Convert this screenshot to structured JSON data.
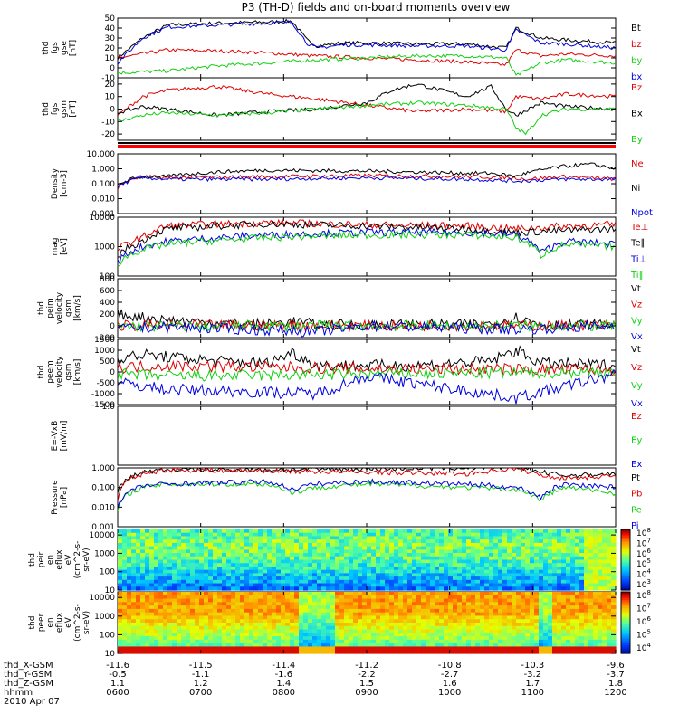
{
  "title": "P3 (TH-D) fields and on-board moments overview",
  "footer": {
    "rows": [
      {
        "label": "thd_X-GSM",
        "values": [
          "-11.6",
          "-11.5",
          "-11.4",
          "-11.2",
          "-10.8",
          "-10.3",
          "-9.6"
        ]
      },
      {
        "label": "thd_Y-GSM",
        "values": [
          "-0.5",
          "-1.1",
          "-1.6",
          "-2.2",
          "-2.7",
          "-3.2",
          "-3.7"
        ]
      },
      {
        "label": "thd_Z-GSM",
        "values": [
          "1.1",
          "1.2",
          "1.4",
          "1.5",
          "1.6",
          "1.7",
          "1.8"
        ]
      },
      {
        "label": "hhmm",
        "values": [
          "0600",
          "0700",
          "0800",
          "0900",
          "1000",
          "1100",
          "1200"
        ]
      }
    ],
    "date": "2010 Apr 07"
  },
  "colors": {
    "black": "#000000",
    "red": "#e00000",
    "green": "#10d010",
    "blue": "#0000e0"
  },
  "chart_data": [
    {
      "type": "line",
      "panel": "fgs-gse",
      "ylabel": [
        "thd",
        "fgs",
        "gse",
        "[nT]"
      ],
      "ylim": [
        -10,
        50
      ],
      "yticks": [
        -10,
        0,
        10,
        20,
        30,
        40,
        50
      ],
      "series": [
        {
          "name": "Bt",
          "color": "#000000",
          "x": [
            0,
            0.05,
            0.1,
            0.2,
            0.3,
            0.35,
            0.38,
            0.4,
            0.45,
            0.5,
            0.6,
            0.7,
            0.78,
            0.8,
            0.85,
            0.9,
            1
          ],
          "y": [
            10,
            30,
            43,
            45,
            46,
            47,
            28,
            22,
            25,
            25,
            24,
            24,
            20,
            40,
            30,
            28,
            25
          ]
        },
        {
          "name": "bz",
          "color": "#e00000",
          "x": [
            0,
            0.1,
            0.2,
            0.3,
            0.4,
            0.5,
            0.6,
            0.7,
            0.78,
            0.8,
            0.85,
            0.9,
            1
          ],
          "y": [
            10,
            18,
            17,
            15,
            12,
            10,
            8,
            6,
            3,
            18,
            12,
            14,
            12
          ]
        },
        {
          "name": "by",
          "color": "#10d010",
          "x": [
            0,
            0.1,
            0.2,
            0.3,
            0.4,
            0.5,
            0.6,
            0.7,
            0.78,
            0.8,
            0.85,
            0.9,
            1
          ],
          "y": [
            -5,
            -3,
            2,
            5,
            8,
            10,
            12,
            12,
            10,
            -8,
            5,
            8,
            5
          ]
        },
        {
          "name": "bx",
          "color": "#0000e0",
          "x": [
            0,
            0.05,
            0.1,
            0.2,
            0.3,
            0.35,
            0.38,
            0.4,
            0.45,
            0.5,
            0.6,
            0.7,
            0.78,
            0.8,
            0.85,
            0.9,
            1
          ],
          "y": [
            5,
            30,
            41,
            43,
            45,
            46,
            25,
            20,
            23,
            23,
            22,
            22,
            18,
            38,
            25,
            24,
            20
          ]
        }
      ]
    },
    {
      "type": "line",
      "panel": "fgs-gsm",
      "ylabel": [
        "thd",
        "fgs",
        "gsm",
        "[nT]"
      ],
      "ylim": [
        -25,
        25
      ],
      "yticks": [
        -20,
        -10,
        0,
        10,
        20
      ],
      "series": [
        {
          "name": "Bz",
          "color": "#e00000",
          "x": [
            0,
            0.05,
            0.1,
            0.2,
            0.3,
            0.4,
            0.5,
            0.6,
            0.7,
            0.78,
            0.8,
            0.85,
            0.9,
            1
          ],
          "y": [
            -5,
            10,
            15,
            18,
            12,
            8,
            3,
            -2,
            0,
            -2,
            10,
            8,
            12,
            10
          ]
        },
        {
          "name": "Bx",
          "color": "#000000",
          "x": [
            0,
            0.05,
            0.1,
            0.2,
            0.3,
            0.4,
            0.5,
            0.55,
            0.6,
            0.7,
            0.75,
            0.78,
            0.8,
            0.85,
            0.9,
            1
          ],
          "y": [
            -3,
            2,
            0,
            -5,
            -2,
            0,
            5,
            15,
            20,
            10,
            18,
            0,
            -5,
            5,
            2,
            0
          ]
        },
        {
          "name": "By",
          "color": "#10d010",
          "x": [
            0,
            0.05,
            0.1,
            0.2,
            0.3,
            0.4,
            0.5,
            0.6,
            0.7,
            0.78,
            0.8,
            0.82,
            0.85,
            0.9,
            1
          ],
          "y": [
            -10,
            -5,
            -3,
            -5,
            -3,
            0,
            3,
            5,
            3,
            0,
            -15,
            -20,
            -5,
            0,
            0
          ]
        }
      ]
    },
    {
      "type": "line",
      "panel": "density",
      "yscale": "log",
      "ylabel": [
        "Density",
        "[cm-3]"
      ],
      "ylim": [
        0.001,
        10
      ],
      "yticks": [
        0.001,
        0.01,
        0.1,
        1,
        10
      ],
      "ytick_labels": [
        "0.001",
        "0.010",
        "0.100",
        "1.000",
        "10.000"
      ],
      "series": [
        {
          "name": "Ne",
          "color": "#e00000",
          "x": [
            0,
            0.05,
            0.1,
            0.3,
            0.5,
            0.7,
            0.8,
            0.82,
            0.9,
            1
          ],
          "y": [
            0.05,
            0.3,
            0.25,
            0.3,
            0.35,
            0.3,
            0.25,
            0.2,
            0.3,
            0.2
          ]
        },
        {
          "name": "Ni",
          "color": "#000000",
          "x": [
            0,
            0.05,
            0.1,
            0.2,
            0.3,
            0.5,
            0.7,
            0.75,
            0.8,
            0.85,
            0.9,
            0.95,
            1
          ],
          "y": [
            0.08,
            0.3,
            0.3,
            0.6,
            0.8,
            0.7,
            0.5,
            0.5,
            0.3,
            0.8,
            1.5,
            2,
            1
          ]
        },
        {
          "name": "Npot",
          "color": "#0000e0",
          "x": [
            0,
            0.05,
            0.1,
            0.3,
            0.5,
            0.7,
            0.8,
            0.9,
            1
          ],
          "y": [
            0.06,
            0.25,
            0.2,
            0.2,
            0.25,
            0.2,
            0.15,
            0.2,
            0.2
          ]
        }
      ]
    },
    {
      "type": "line",
      "panel": "temperature",
      "yscale": "log",
      "ylabel": [
        "mag",
        "[eV]"
      ],
      "ylim": [
        100,
        10000
      ],
      "yticks": [
        100,
        1000,
        10000
      ],
      "ytick_labels": [
        "100",
        "1000",
        "10000"
      ],
      "series": [
        {
          "name": "Te⊥",
          "color": "#e00000",
          "x": [
            0,
            0.05,
            0.1,
            0.3,
            0.5,
            0.7,
            0.8,
            0.9,
            1
          ],
          "y": [
            800,
            2000,
            5000,
            6500,
            5500,
            5000,
            4000,
            5000,
            5500
          ]
        },
        {
          "name": "Te∥",
          "color": "#000000",
          "x": [
            0,
            0.05,
            0.1,
            0.3,
            0.5,
            0.7,
            0.8,
            0.9,
            1
          ],
          "y": [
            500,
            1500,
            4000,
            6000,
            5000,
            4000,
            3000,
            3500,
            4000
          ]
        },
        {
          "name": "Ti⊥",
          "color": "#0000e0",
          "x": [
            0,
            0.05,
            0.1,
            0.3,
            0.5,
            0.7,
            0.8,
            0.85,
            0.9,
            1
          ],
          "y": [
            300,
            1000,
            1500,
            2500,
            3000,
            3000,
            2500,
            600,
            1500,
            1200
          ]
        },
        {
          "name": "Ti∥",
          "color": "#10d010",
          "x": [
            0,
            0.05,
            0.1,
            0.3,
            0.5,
            0.7,
            0.8,
            0.85,
            0.9,
            1
          ],
          "y": [
            250,
            800,
            1200,
            2000,
            2500,
            2500,
            2000,
            500,
            1200,
            1000
          ]
        }
      ]
    },
    {
      "type": "line",
      "panel": "peim-velocity",
      "ylabel": [
        "thd",
        "peim",
        "velocity",
        "gsm",
        "[km/s]"
      ],
      "ylim": [
        -200,
        800
      ],
      "yticks": [
        -200,
        0,
        200,
        400,
        600,
        800
      ],
      "series": [
        {
          "name": "Vt",
          "color": "#000000",
          "x": [
            0,
            0.05,
            0.1,
            0.2,
            0.3,
            0.35,
            0.4,
            0.6,
            0.75,
            0.8,
            0.85,
            1
          ],
          "y": [
            200,
            150,
            100,
            50,
            30,
            80,
            20,
            20,
            30,
            150,
            20,
            20
          ]
        },
        {
          "name": "Vz",
          "color": "#e00000",
          "x": [
            0,
            0.1,
            0.5,
            1
          ],
          "y": [
            0,
            10,
            5,
            0
          ]
        },
        {
          "name": "Vy",
          "color": "#10d010",
          "x": [
            0,
            0.1,
            0.5,
            1
          ],
          "y": [
            0,
            -10,
            0,
            0
          ]
        },
        {
          "name": "Vx",
          "color": "#0000e0",
          "x": [
            0,
            0.1,
            0.4,
            0.5,
            0.8,
            1
          ],
          "y": [
            -50,
            -20,
            -100,
            0,
            -60,
            0
          ]
        }
      ]
    },
    {
      "type": "line",
      "panel": "peem-velocity",
      "ylabel": [
        "thd",
        "peem",
        "velocity",
        "gsm",
        "[km/s]"
      ],
      "ylim": [
        -1500,
        1500
      ],
      "yticks": [
        -1500,
        -1000,
        -500,
        0,
        500,
        1000,
        1500
      ],
      "series": [
        {
          "name": "Vt",
          "color": "#000000",
          "x": [
            0,
            0.05,
            0.1,
            0.2,
            0.3,
            0.35,
            0.4,
            0.6,
            0.75,
            0.8,
            0.85,
            1
          ],
          "y": [
            600,
            800,
            700,
            500,
            400,
            900,
            300,
            300,
            500,
            1000,
            400,
            300
          ]
        },
        {
          "name": "Vz",
          "color": "#e00000",
          "x": [
            0,
            0.1,
            0.5,
            1
          ],
          "y": [
            200,
            300,
            150,
            100
          ]
        },
        {
          "name": "Vy",
          "color": "#10d010",
          "x": [
            0,
            0.1,
            0.5,
            1
          ],
          "y": [
            -100,
            -200,
            -100,
            0
          ]
        },
        {
          "name": "Vx",
          "color": "#0000e0",
          "x": [
            0,
            0.1,
            0.4,
            0.5,
            0.8,
            1
          ],
          "y": [
            -500,
            -800,
            -1000,
            -200,
            -1200,
            -100
          ]
        }
      ]
    },
    {
      "type": "line",
      "panel": "efield",
      "ylabel": [
        "E=-VxB",
        "[mV/m]"
      ],
      "ylim": [
        null,
        1.0
      ],
      "yticks": [
        1.0
      ],
      "ytick_labels": [
        "1.0"
      ],
      "series": [
        {
          "name": "Ez",
          "color": "#e00000",
          "x": [],
          "y": []
        },
        {
          "name": "Ey",
          "color": "#10d010",
          "x": [],
          "y": []
        },
        {
          "name": "Ex",
          "color": "#0000e0",
          "x": [],
          "y": []
        }
      ]
    },
    {
      "type": "line",
      "panel": "pressure",
      "yscale": "log",
      "ylabel": [
        "Pressure",
        "[nPa]"
      ],
      "ylim": [
        0.001,
        1
      ],
      "yticks": [
        0.001,
        0.01,
        0.1,
        1
      ],
      "ytick_labels": [
        "0.001",
        "0.010",
        "0.100",
        "1.000"
      ],
      "series": [
        {
          "name": "Pt",
          "color": "#000000",
          "x": [
            0,
            0.05,
            0.1,
            0.3,
            0.5,
            0.7,
            0.8,
            0.85,
            0.9,
            1
          ],
          "y": [
            0.05,
            0.6,
            0.8,
            0.8,
            0.9,
            1.0,
            1.1,
            0.6,
            0.4,
            0.5
          ]
        },
        {
          "name": "Pb",
          "color": "#e00000",
          "x": [
            0,
            0.05,
            0.1,
            0.3,
            0.5,
            0.7,
            0.8,
            0.85,
            0.9,
            1
          ],
          "y": [
            0.02,
            0.5,
            0.8,
            0.7,
            0.6,
            0.5,
            0.9,
            0.4,
            0.3,
            0.4
          ]
        },
        {
          "name": "Pe",
          "color": "#10d010",
          "x": [
            0,
            0.05,
            0.1,
            0.3,
            0.35,
            0.4,
            0.5,
            0.7,
            0.8,
            0.85,
            0.9,
            1
          ],
          "y": [
            0.005,
            0.1,
            0.15,
            0.15,
            0.05,
            0.1,
            0.15,
            0.1,
            0.08,
            0.02,
            0.1,
            0.05
          ]
        },
        {
          "name": "Pi",
          "color": "#0000e0",
          "x": [
            0,
            0.05,
            0.1,
            0.3,
            0.35,
            0.4,
            0.5,
            0.7,
            0.8,
            0.85,
            0.9,
            1
          ],
          "y": [
            0.008,
            0.12,
            0.15,
            0.2,
            0.08,
            0.15,
            0.2,
            0.15,
            0.1,
            0.03,
            0.15,
            0.1
          ]
        }
      ]
    },
    {
      "type": "heatmap",
      "panel": "peir-spectrogram",
      "ylabel": [
        "thd",
        "peir",
        "en",
        "eflux",
        "eV",
        "(cm^2-s-",
        "sr-eV)"
      ],
      "ylim": [
        10,
        20000
      ],
      "yscale": "log",
      "yticks": [
        10,
        100,
        1000,
        10000
      ],
      "ytick_labels": [
        "10",
        "100",
        "1000",
        "10000"
      ],
      "colorbar_ticks": [
        "10^3",
        "10^4",
        "10^5",
        "10^6",
        "10^7",
        "10^8"
      ]
    },
    {
      "type": "heatmap",
      "panel": "peer-spectrogram",
      "ylabel": [
        "thd",
        "peer",
        "en",
        "eflux",
        "eV",
        "(cm^2-s-",
        "sr-eV)"
      ],
      "ylim": [
        10,
        20000
      ],
      "yscale": "log",
      "yticks": [
        10,
        100,
        1000,
        10000
      ],
      "ytick_labels": [
        "10",
        "100",
        "1000",
        "10000"
      ],
      "colorbar_ticks": [
        "10^4",
        "10^5",
        "10^6",
        "10^7",
        "10^8"
      ]
    }
  ]
}
